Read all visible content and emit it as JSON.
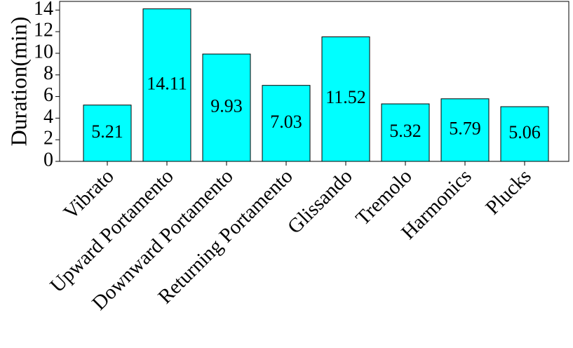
{
  "chart_data": {
    "type": "bar",
    "y_label": "Duration(min)",
    "categories": [
      "Vibrato",
      "Upward Portamento",
      "Downward Portamento",
      "Returning Portamento",
      "Glissando",
      "Tremolo",
      "Harmonics",
      "Plucks"
    ],
    "values": [
      5.21,
      14.11,
      9.93,
      7.03,
      11.52,
      5.32,
      5.79,
      5.06
    ],
    "color": "#00ffff",
    "ylim": [
      0,
      14.8
    ],
    "yticks": [
      0,
      2,
      4,
      6,
      8,
      10,
      12,
      14
    ],
    "grid": false
  }
}
